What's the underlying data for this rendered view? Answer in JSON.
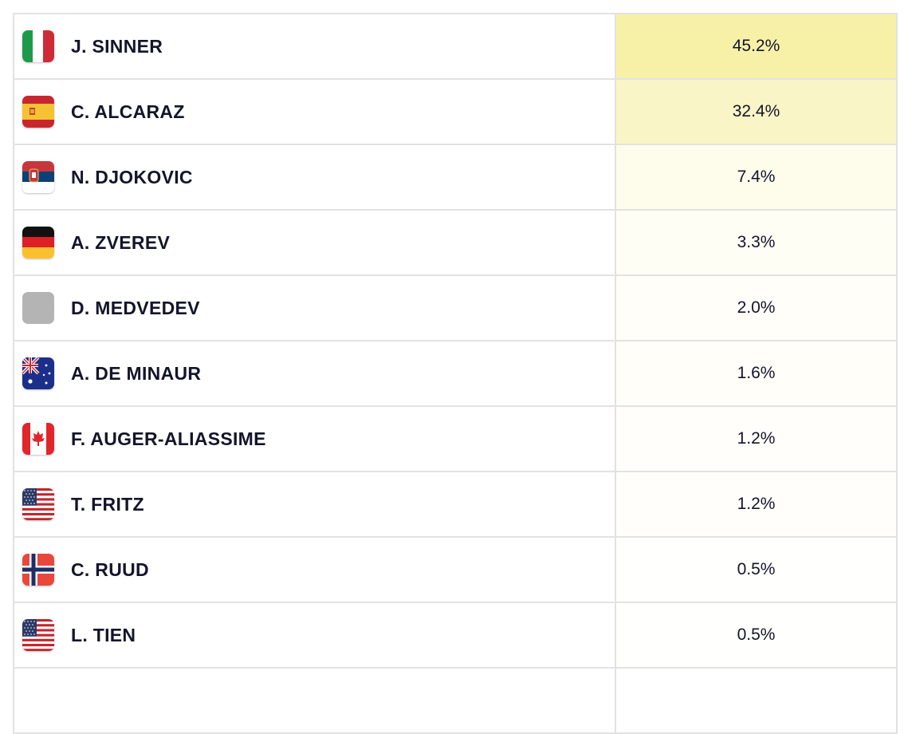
{
  "players": [
    {
      "name": "J. SINNER",
      "pct": "45.2%",
      "flag": "italy-flag-icon",
      "bg": "#f7f1a8"
    },
    {
      "name": "C. ALCARAZ",
      "pct": "32.4%",
      "flag": "spain-flag-icon",
      "bg": "#f9f5c6"
    },
    {
      "name": "N. DJOKOVIC",
      "pct": "7.4%",
      "flag": "serbia-flag-icon",
      "bg": "#fefdec"
    },
    {
      "name": "A. ZVEREV",
      "pct": "3.3%",
      "flag": "germany-flag-icon",
      "bg": "#fffef5"
    },
    {
      "name": "D. MEDVEDEV",
      "pct": "2.0%",
      "flag": "neutral-flag-icon",
      "bg": "#fffef8"
    },
    {
      "name": "A. DE MINAUR",
      "pct": "1.6%",
      "flag": "australia-flag-icon",
      "bg": "#fffef9"
    },
    {
      "name": "F. AUGER-ALIASSIME",
      "pct": "1.2%",
      "flag": "canada-flag-icon",
      "bg": "#fffefb"
    },
    {
      "name": "T. FRITZ",
      "pct": "1.2%",
      "flag": "usa-flag-icon",
      "bg": "#fffefb"
    },
    {
      "name": "C. RUUD",
      "pct": "0.5%",
      "flag": "norway-flag-icon",
      "bg": "#fffffd"
    },
    {
      "name": "L. TIEN",
      "pct": "0.5%",
      "flag": "usa-flag-icon",
      "bg": "#fffffd"
    },
    {
      "name": "",
      "pct": "",
      "flag": "",
      "bg": "#ffffff"
    }
  ]
}
